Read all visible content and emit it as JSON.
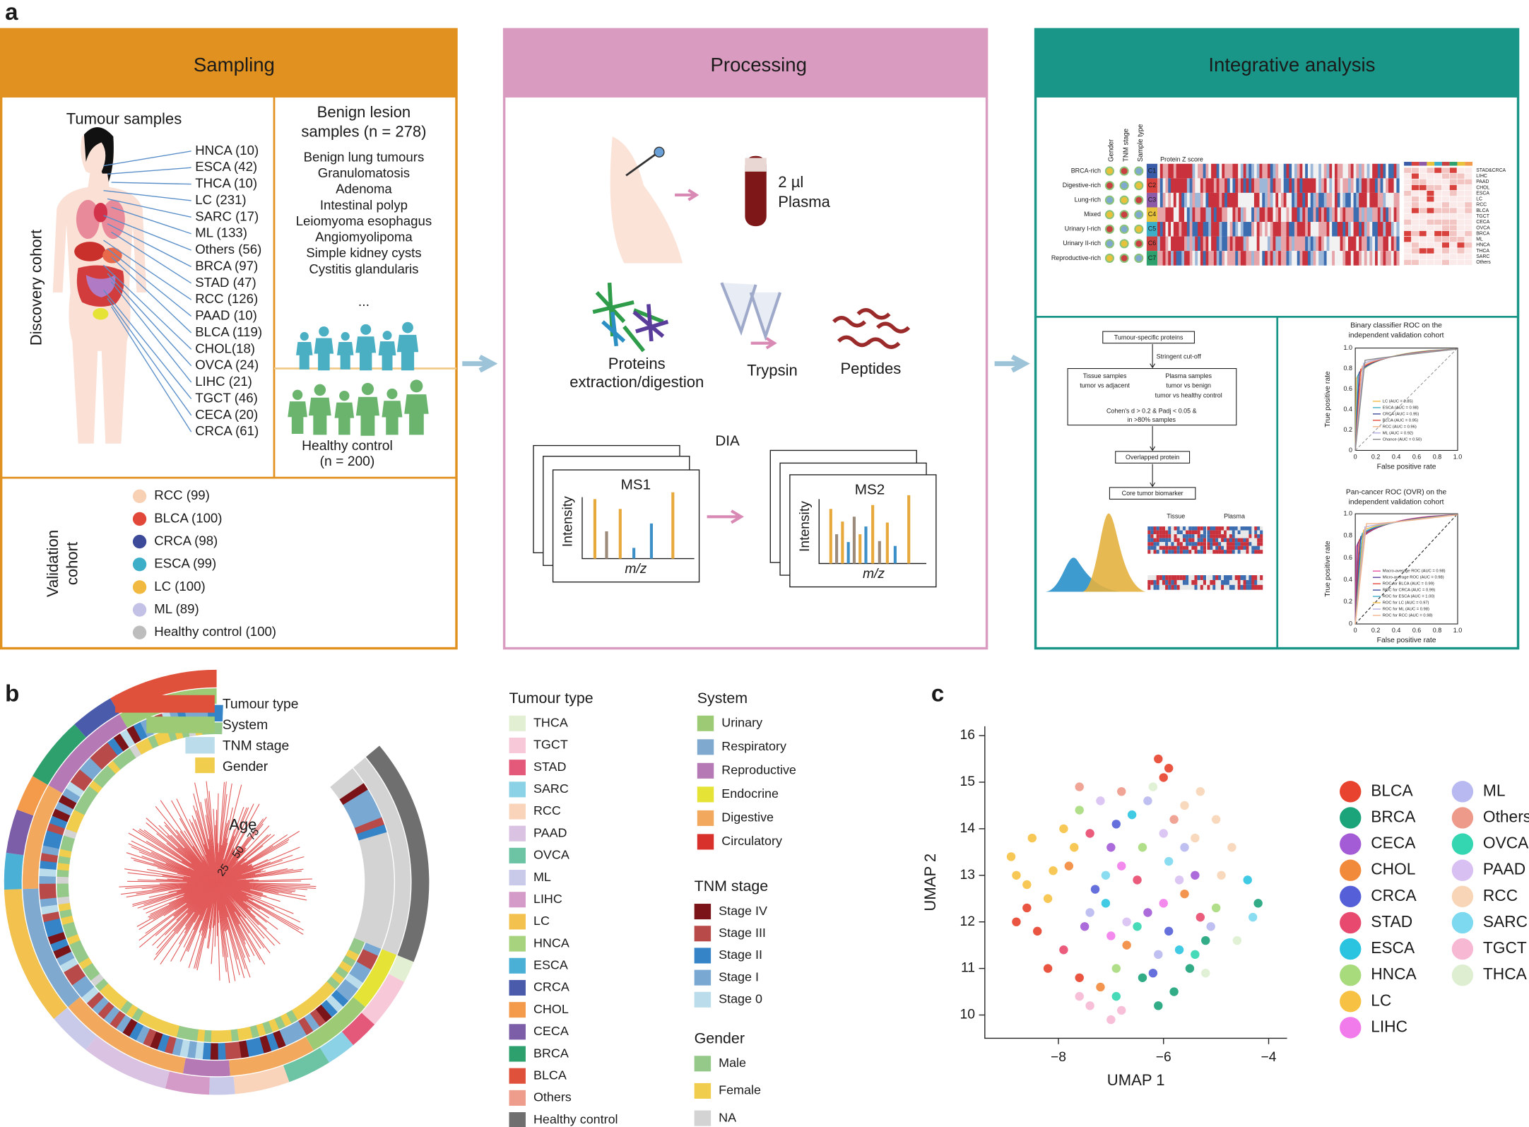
{
  "panel_labels": {
    "a": "a",
    "b": "b",
    "c": "c"
  },
  "sampling": {
    "title": "Sampling",
    "tumour_title": "Tumour samples",
    "tumour_list": [
      "HNCA (10)",
      "ESCA (42)",
      "THCA (10)",
      "LC (231)",
      "SARC (17)",
      "ML (133)",
      "Others (56)",
      "BRCA (97)",
      "STAD (47)",
      "RCC (126)",
      "PAAD (10)",
      "BLCA (119)",
      "CHOL(18)",
      "OVCA (24)",
      "LIHC (21)",
      "TGCT (46)",
      "CECA (20)",
      "CRCA (61)"
    ],
    "discovery_label": "Discovery cohort",
    "benign_title": [
      "Benign lesion",
      "samples (n = 278)"
    ],
    "benign_list": [
      "Benign lung tumours",
      "Granulomatosis",
      "Adenoma",
      "Intestinal polyp",
      "Leiomyoma esophagus",
      "Angiomyolipoma",
      "Simple kidney cysts",
      "Cystitis glandularis"
    ],
    "ellipsis": "...",
    "healthy": [
      "Healthy control",
      "(n = 200)"
    ],
    "validation_label": [
      "Validation",
      "cohort"
    ],
    "validation_list": [
      {
        "label": "RCC (99)",
        "color": "#F8D0B4"
      },
      {
        "label": "BLCA (100)",
        "color": "#E1483A"
      },
      {
        "label": "CRCA (98)",
        "color": "#3D4A9A"
      },
      {
        "label": "ESCA (99)",
        "color": "#3DAEC8"
      },
      {
        "label": "LC (100)",
        "color": "#F1B93F"
      },
      {
        "label": "ML (89)",
        "color": "#C3C1E6"
      },
      {
        "label": "Healthy control (100)",
        "color": "#BDBDBD"
      }
    ]
  },
  "processing": {
    "title": "Processing",
    "plasma": [
      "2 µl",
      "Plasma"
    ],
    "proteins": [
      "Proteins",
      "extraction/digestion"
    ],
    "trypsin": "Trypsin",
    "peptides": "Peptides",
    "dia": "DIA",
    "ms1": "MS1",
    "ms2": "MS2",
    "intensity": "Intensity",
    "mz": "m/z"
  },
  "integrative": {
    "title": "Integrative analysis",
    "heatmap": {
      "columns": [
        "Gender",
        "TNM stage",
        "Sample type"
      ],
      "scale_title": "Protein Z score",
      "rows": [
        "BRCA-rich",
        "Digestive-rich",
        "Lung-rich",
        "Mixed",
        "Urinary I-rich",
        "Urinary II-rich",
        "Reproductive-rich"
      ],
      "clusters": [
        "C1",
        "C2",
        "C3",
        "C4",
        "C5",
        "C6",
        "C7"
      ],
      "tumour_labels": [
        "STAD&CRCA",
        "LIHC",
        "PAAD",
        "CHOL",
        "ESCA",
        "LC",
        "RCC",
        "BLCA",
        "TGCT",
        "CECA",
        "OVCA",
        "BRCA",
        "ML",
        "HNCA",
        "THCA",
        "SARC",
        "Others"
      ]
    },
    "flow": {
      "start": "Tumour-specific proteins",
      "cutoff": "Stringent cut-off",
      "tissue": "Tissue samples",
      "tissue_cmp": "tumor vs adjacent",
      "plasma": "Plasma samples",
      "plasma_cmp": [
        "tumor vs benign",
        "tumor vs healthy control"
      ],
      "criteria": [
        "Cohen's d > 0.2 & Padj < 0.05 &",
        "in >80% samples"
      ],
      "overlap": "Overlapped protein",
      "core": "Core tumor biomarker",
      "tissue_head": "Tissue",
      "plasma_head": "Plasma"
    },
    "roc_binary": {
      "title": [
        "Binary classifier ROC on the",
        "independent validation cohort"
      ],
      "xlabel": "False positive rate",
      "ylabel": "True positive rate",
      "ticks": [
        "0",
        "0.2",
        "0.4",
        "0.6",
        "0.8",
        "1.0"
      ],
      "legend": [
        {
          "label": "LC (AUC = 0.85)",
          "color": "#F1B93F"
        },
        {
          "label": "ESCA (AUC = 0.98)",
          "color": "#3DAEC8"
        },
        {
          "label": "CRCA (AUC = 0.95)",
          "color": "#3D4A9A"
        },
        {
          "label": "BLCA (AUC = 0.95)",
          "color": "#E1483A"
        },
        {
          "label": "RCC (AUC = 0.96)",
          "color": "#F2B48C"
        },
        {
          "label": "ML (AUC = 0.92)",
          "color": "#B0AEE0"
        },
        {
          "label": "Chance (AUC = 0.50)",
          "color": "#888888"
        }
      ]
    },
    "roc_ovr": {
      "title": [
        "Pan-cancer ROC (OVR) on the",
        "independent validation cohort"
      ],
      "xlabel": "False positive rate",
      "ylabel": "True positive rate",
      "ticks": [
        "0",
        "0.2",
        "0.4",
        "0.6",
        "0.8",
        "1.0"
      ],
      "legend": [
        {
          "label": "Macro-average ROC (AUC = 0.98)",
          "color": "#E84FA0"
        },
        {
          "label": "Micro-average ROC (AUC = 0.98)",
          "color": "#5A3C9A"
        },
        {
          "label": "ROC for BLCA (AUC = 0.99)",
          "color": "#E1483A"
        },
        {
          "label": "ROC for CRCA (AUC = 0.99)",
          "color": "#3D4A9A"
        },
        {
          "label": "ROC for ESCA (AUC = 1.00)",
          "color": "#3DAEC8"
        },
        {
          "label": "ROC for LC (AUC = 0.97)",
          "color": "#F1B93F"
        },
        {
          "label": "ROC for ML (AUC = 0.98)",
          "color": "#B0AEE0"
        },
        {
          "label": "ROC for RCC (AUC = 0.98)",
          "color": "#F2B48C"
        }
      ]
    }
  },
  "circos": {
    "tracks": [
      "Tumour type",
      "System",
      "TNM stage",
      "Gender"
    ],
    "age_label": "Age",
    "age_ticks": [
      25,
      50,
      75
    ]
  },
  "legend_b": {
    "tumour_type": {
      "title": "Tumour type",
      "items": [
        {
          "label": "THCA",
          "color": "#E3EFD3"
        },
        {
          "label": "TGCT",
          "color": "#F7C9D8"
        },
        {
          "label": "STAD",
          "color": "#E4587A"
        },
        {
          "label": "SARC",
          "color": "#8CD2E6"
        },
        {
          "label": "RCC",
          "color": "#F9D4BB"
        },
        {
          "label": "PAAD",
          "color": "#D9C2E2"
        },
        {
          "label": "OVCA",
          "color": "#6CC4A4"
        },
        {
          "label": "ML",
          "color": "#C9C9EA"
        },
        {
          "label": "LIHC",
          "color": "#D59BC8"
        },
        {
          "label": "LC",
          "color": "#F2C14E"
        },
        {
          "label": "HNCA",
          "color": "#A8D37E"
        },
        {
          "label": "ESCA",
          "color": "#4AB0D6"
        },
        {
          "label": "CRCA",
          "color": "#4A5BAB"
        },
        {
          "label": "CHOL",
          "color": "#F39A4B"
        },
        {
          "label": "CECA",
          "color": "#7B5EA7"
        },
        {
          "label": "BRCA",
          "color": "#2EA06E"
        },
        {
          "label": "BLCA",
          "color": "#E0513C"
        },
        {
          "label": "Others",
          "color": "#EE9C8C"
        },
        {
          "label": "Healthy control",
          "color": "#6F6F6F"
        }
      ]
    },
    "system": {
      "title": "System",
      "items": [
        {
          "label": "Urinary",
          "color": "#9DCB75"
        },
        {
          "label": "Respiratory",
          "color": "#7FA9CF"
        },
        {
          "label": "Reproductive",
          "color": "#B57AB5"
        },
        {
          "label": "Endocrine",
          "color": "#E4E336"
        },
        {
          "label": "Digestive",
          "color": "#F2A95E"
        },
        {
          "label": "Circulatory",
          "color": "#D8312B"
        }
      ]
    },
    "tnm": {
      "title": "TNM stage",
      "items": [
        {
          "label": "Stage IV",
          "color": "#7B1418"
        },
        {
          "label": "Stage III",
          "color": "#B84A4A"
        },
        {
          "label": "Stage II",
          "color": "#3584C8"
        },
        {
          "label": "Stage I",
          "color": "#79A8D2"
        },
        {
          "label": "Stage 0",
          "color": "#BBDCEA"
        }
      ]
    },
    "gender": {
      "title": "Gender",
      "items": [
        {
          "label": "Male",
          "color": "#95C98A"
        },
        {
          "label": "Female",
          "color": "#F0CD4C"
        },
        {
          "label": "NA",
          "color": "#D3D3D3"
        }
      ]
    }
  },
  "chart_data": {
    "type": "scatter",
    "xlabel": "UMAP 1",
    "ylabel": "UMAP 2",
    "xlim": [
      -9.4,
      -3.65
    ],
    "ylim": [
      9.5,
      16.2
    ],
    "xticks": [
      {
        "value": -8,
        "label": "−8"
      },
      {
        "value": -6,
        "label": "−6"
      },
      {
        "value": -4,
        "label": "−4"
      }
    ],
    "yticks": [
      10,
      11,
      12,
      13,
      14,
      15,
      16
    ],
    "series": [
      {
        "name": "BLCA",
        "color": "#E8432E",
        "x": [
          -6.1,
          -5.9,
          -6.0,
          -8.6,
          -8.4,
          -8.8,
          -8.2,
          -7.6
        ],
        "y": [
          15.5,
          15.3,
          15.1,
          12.3,
          11.8,
          12.0,
          11.0,
          10.8
        ]
      },
      {
        "name": "BRCA",
        "color": "#1BA37A",
        "x": [
          -5.5,
          -5.8,
          -6.1,
          -4.2,
          -5.2,
          -6.4
        ],
        "y": [
          11.0,
          10.5,
          10.2,
          12.4,
          11.6,
          10.8
        ]
      },
      {
        "name": "CECA",
        "color": "#A35BD6",
        "x": [
          -7.0,
          -6.3,
          -5.4,
          -7.5
        ],
        "y": [
          13.6,
          12.2,
          13.0,
          11.9
        ]
      },
      {
        "name": "CHOL",
        "color": "#F28A3C",
        "x": [
          -7.8,
          -6.7,
          -5.6,
          -7.2
        ],
        "y": [
          13.2,
          11.5,
          12.6,
          10.6
        ]
      },
      {
        "name": "CRCA",
        "color": "#5560D8",
        "x": [
          -6.9,
          -5.9,
          -7.3,
          -6.2
        ],
        "y": [
          14.1,
          11.8,
          12.7,
          10.9
        ]
      },
      {
        "name": "STAD",
        "color": "#E8496E",
        "x": [
          -7.4,
          -6.5,
          -5.3,
          -7.9
        ],
        "y": [
          13.9,
          12.9,
          12.1,
          11.4
        ]
      },
      {
        "name": "ESCA",
        "color": "#2BC4E0",
        "x": [
          -6.6,
          -7.1,
          -5.7,
          -4.4
        ],
        "y": [
          14.3,
          12.4,
          11.4,
          12.9
        ]
      },
      {
        "name": "HNCA",
        "color": "#A8DB7C",
        "x": [
          -7.6,
          -6.4,
          -5.0,
          -6.9
        ],
        "y": [
          14.4,
          13.6,
          12.3,
          11.0
        ]
      },
      {
        "name": "LC",
        "color": "#F7C244",
        "x": [
          -8.9,
          -8.5,
          -8.1,
          -8.6,
          -7.7,
          -8.2,
          -7.9,
          -8.8
        ],
        "y": [
          13.4,
          13.8,
          13.1,
          12.8,
          13.6,
          12.5,
          14.0,
          13.0
        ]
      },
      {
        "name": "LIHC",
        "color": "#F27BEB",
        "x": [
          -6.8,
          -6.0,
          -7.0
        ],
        "y": [
          13.2,
          12.4,
          11.7
        ]
      },
      {
        "name": "ML",
        "color": "#B8B9F0",
        "x": [
          -6.3,
          -5.6,
          -7.4,
          -6.1,
          -5.1
        ],
        "y": [
          14.6,
          13.6,
          12.2,
          11.3,
          11.9
        ]
      },
      {
        "name": "Others",
        "color": "#EE9A8A",
        "x": [
          -7.6,
          -6.8,
          -5.8
        ],
        "y": [
          14.9,
          14.8,
          14.2
        ]
      },
      {
        "name": "OVCA",
        "color": "#33D6B0",
        "x": [
          -6.5,
          -5.4,
          -6.9
        ],
        "y": [
          11.9,
          11.3,
          10.4
        ]
      },
      {
        "name": "PAAD",
        "color": "#D8C0F2",
        "x": [
          -7.2,
          -6.0,
          -5.7,
          -6.7
        ],
        "y": [
          14.6,
          13.9,
          12.9,
          12.0
        ]
      },
      {
        "name": "RCC",
        "color": "#F8D5B6",
        "x": [
          -5.3,
          -5.0,
          -4.7,
          -5.4,
          -4.9,
          -5.6
        ],
        "y": [
          14.8,
          14.2,
          13.6,
          13.8,
          13.0,
          14.5
        ]
      },
      {
        "name": "SARC",
        "color": "#7DD9F0",
        "x": [
          -4.3,
          -5.9,
          -7.1
        ],
        "y": [
          12.1,
          13.3,
          13.0
        ]
      },
      {
        "name": "TGCT",
        "color": "#F7B8D4",
        "x": [
          -7.4,
          -7.0,
          -7.6,
          -6.8
        ],
        "y": [
          10.2,
          9.9,
          10.4,
          10.1
        ]
      },
      {
        "name": "THCA",
        "color": "#DDEFD0",
        "x": [
          -4.6,
          -5.2,
          -6.2
        ],
        "y": [
          11.6,
          10.9,
          14.9
        ]
      }
    ]
  }
}
